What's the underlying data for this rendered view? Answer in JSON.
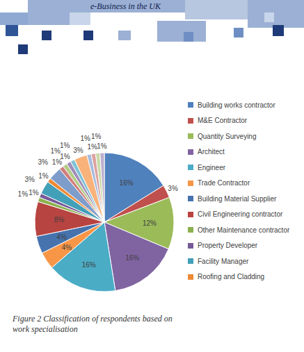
{
  "header": {
    "text": "e-Business in the UK"
  },
  "chart_data": {
    "type": "pie",
    "title": "Figure 2 Classification of respondents based on work specialisation",
    "categories": [
      "Building works contractor",
      "M&E Contractor",
      "Quantity Surveying",
      "Architect",
      "Engineer",
      "Trade Contractor",
      "Building Material Supplier",
      "Civil Engineering contractor",
      "Other Maintenance contractor",
      "Property Developer",
      "Facility Manager",
      "Roofing and Cladding",
      null,
      null,
      null,
      null,
      null,
      null,
      null,
      null,
      null,
      null
    ],
    "values": [
      16,
      3,
      12,
      16,
      16,
      4,
      4,
      8,
      1,
      1,
      3,
      1,
      3,
      1,
      1,
      1,
      1,
      3,
      1,
      1,
      1,
      1
    ],
    "value_labels": [
      "16%",
      "3%",
      "12%",
      "16%",
      "16%",
      "4%",
      "4%",
      "8%",
      "1%",
      "1%",
      "3%",
      "1%",
      "3%",
      "1%",
      "1%",
      "1%",
      "1%",
      "3%",
      "1%",
      "1%",
      "1%",
      "1%"
    ],
    "colors": [
      "#4F81BD",
      "#C0504D",
      "#9BBB59",
      "#8064A2",
      "#4BACC6",
      "#F79646",
      "#4673AE",
      "#B84441",
      "#8DB04F",
      "#765A98",
      "#42A0B8",
      "#EE8A37",
      "#7E9DCB",
      "#D07F7D",
      "#B3CC85",
      "#A08DBA",
      "#7FC3D6",
      "#F9B27A",
      "#A7BCDD",
      "#DDA3A1",
      "#C8DAA9",
      "#BCAFCF"
    ],
    "data_labels": true,
    "legend": "right"
  }
}
